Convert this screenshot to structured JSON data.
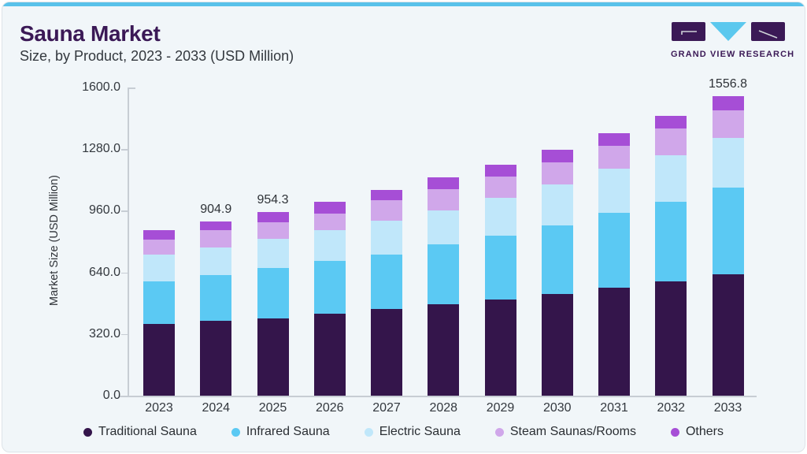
{
  "header": {
    "title": "Sauna Market",
    "subtitle": "Size, by Product, 2023 - 2033 (USD Million)",
    "brand_name": "GRAND VIEW RESEARCH"
  },
  "theme": {
    "card_background": "#F1F6F9",
    "accent_strip": "#59C2EA",
    "title_color": "#3B1956",
    "text_color": "#33383E",
    "axis_color": "#C7CDD4",
    "logo_block_color": "#3B1956",
    "logo_triangle_color": "#5BC8EE"
  },
  "chart_data": {
    "type": "bar",
    "stacked": true,
    "title": "Sauna Market Size, by Product, 2023 - 2033 (USD Million)",
    "xlabel": "",
    "ylabel": "Market Size (USD Million)",
    "categories": [
      "2023",
      "2024",
      "2025",
      "2026",
      "2027",
      "2028",
      "2029",
      "2030",
      "2031",
      "2032",
      "2033"
    ],
    "series": [
      {
        "name": "Traditional Sauna",
        "color": "#34154B",
        "values": [
          372.0,
          388.0,
          402.0,
          426.0,
          450.0,
          473.0,
          498.0,
          528.0,
          560.0,
          594.0,
          630.6
        ]
      },
      {
        "name": "Infrared Sauna",
        "color": "#5BC9F3",
        "values": [
          221.0,
          238.0,
          259.0,
          275.0,
          283.0,
          311.0,
          334.0,
          354.0,
          388.0,
          414.0,
          449.4
        ]
      },
      {
        "name": "Electric Sauna",
        "color": "#C0E7FA",
        "values": [
          138.0,
          143.0,
          154.0,
          158.0,
          177.0,
          178.0,
          197.0,
          214.0,
          232.0,
          242.0,
          256.2
        ]
      },
      {
        "name": "Steam Saunas/Rooms",
        "color": "#D0A7EA",
        "values": [
          80.0,
          90.0,
          86.0,
          87.0,
          105.0,
          112.0,
          110.0,
          116.0,
          117.0,
          136.0,
          145.9
        ]
      },
      {
        "name": "Others",
        "color": "#A64ED6",
        "values": [
          49.0,
          45.9,
          53.3,
          59.0,
          52.0,
          60.0,
          61.0,
          64.0,
          65.0,
          68.0,
          74.7
        ]
      }
    ],
    "annotations": [
      {
        "category": "2024",
        "text": "904.9"
      },
      {
        "category": "2025",
        "text": "954.3"
      },
      {
        "category": "2033",
        "text": "1556.8"
      }
    ],
    "ytick_labels": [
      "0.0",
      "320.0",
      "640.0",
      "960.0",
      "1280.0",
      "1600.0"
    ],
    "ylim": [
      0,
      1600
    ],
    "grid": false,
    "legend_position": "bottom"
  }
}
